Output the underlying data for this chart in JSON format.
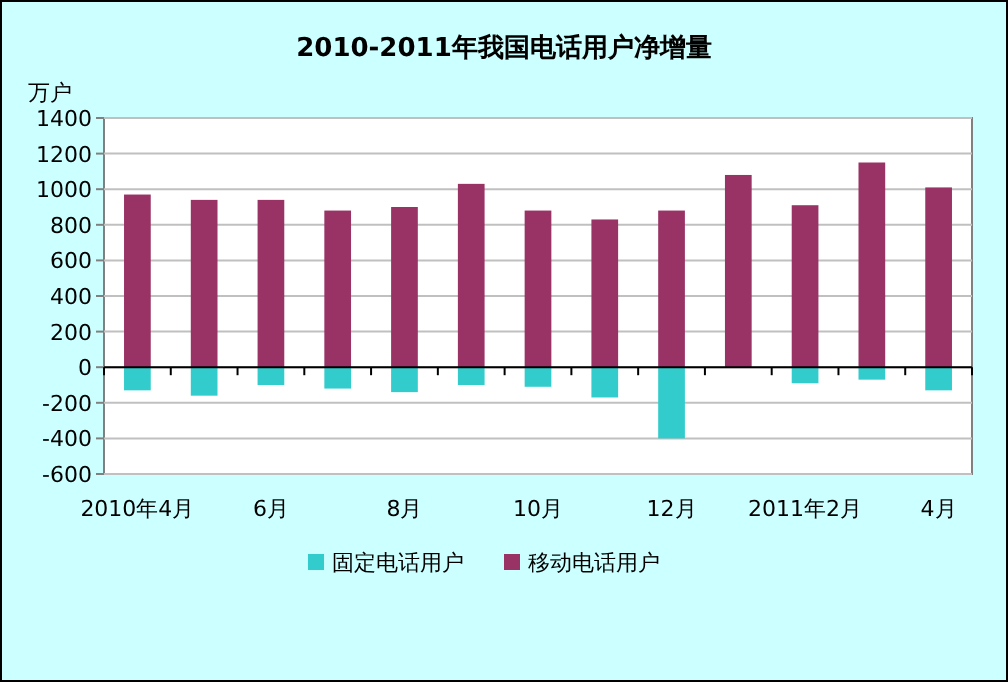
{
  "chart_data": {
    "type": "bar",
    "title": "2010-2011年我国电话用户净增量",
    "ylabel": "万户",
    "stacked": true,
    "categories": [
      "2010年4月",
      null,
      "6月",
      null,
      "8月",
      null,
      "10月",
      null,
      "12月",
      null,
      "2011年2月",
      null,
      "4月"
    ],
    "series": [
      {
        "name": "固定电话用户",
        "color": "#33cccc",
        "values": [
          -130,
          -160,
          -100,
          -120,
          -140,
          -100,
          -110,
          -170,
          -400,
          null,
          -90,
          -70,
          -130
        ]
      },
      {
        "name": "移动电话用户",
        "color": "#993366",
        "values": [
          970,
          940,
          940,
          880,
          900,
          1030,
          880,
          830,
          880,
          1080,
          910,
          1150,
          1010
        ]
      }
    ],
    "ylim": [
      -600,
      1400
    ],
    "yticks": [
      -600,
      -400,
      -200,
      0,
      200,
      400,
      600,
      800,
      1000,
      1200,
      1400
    ],
    "grid": "y",
    "legend": "bottom"
  }
}
